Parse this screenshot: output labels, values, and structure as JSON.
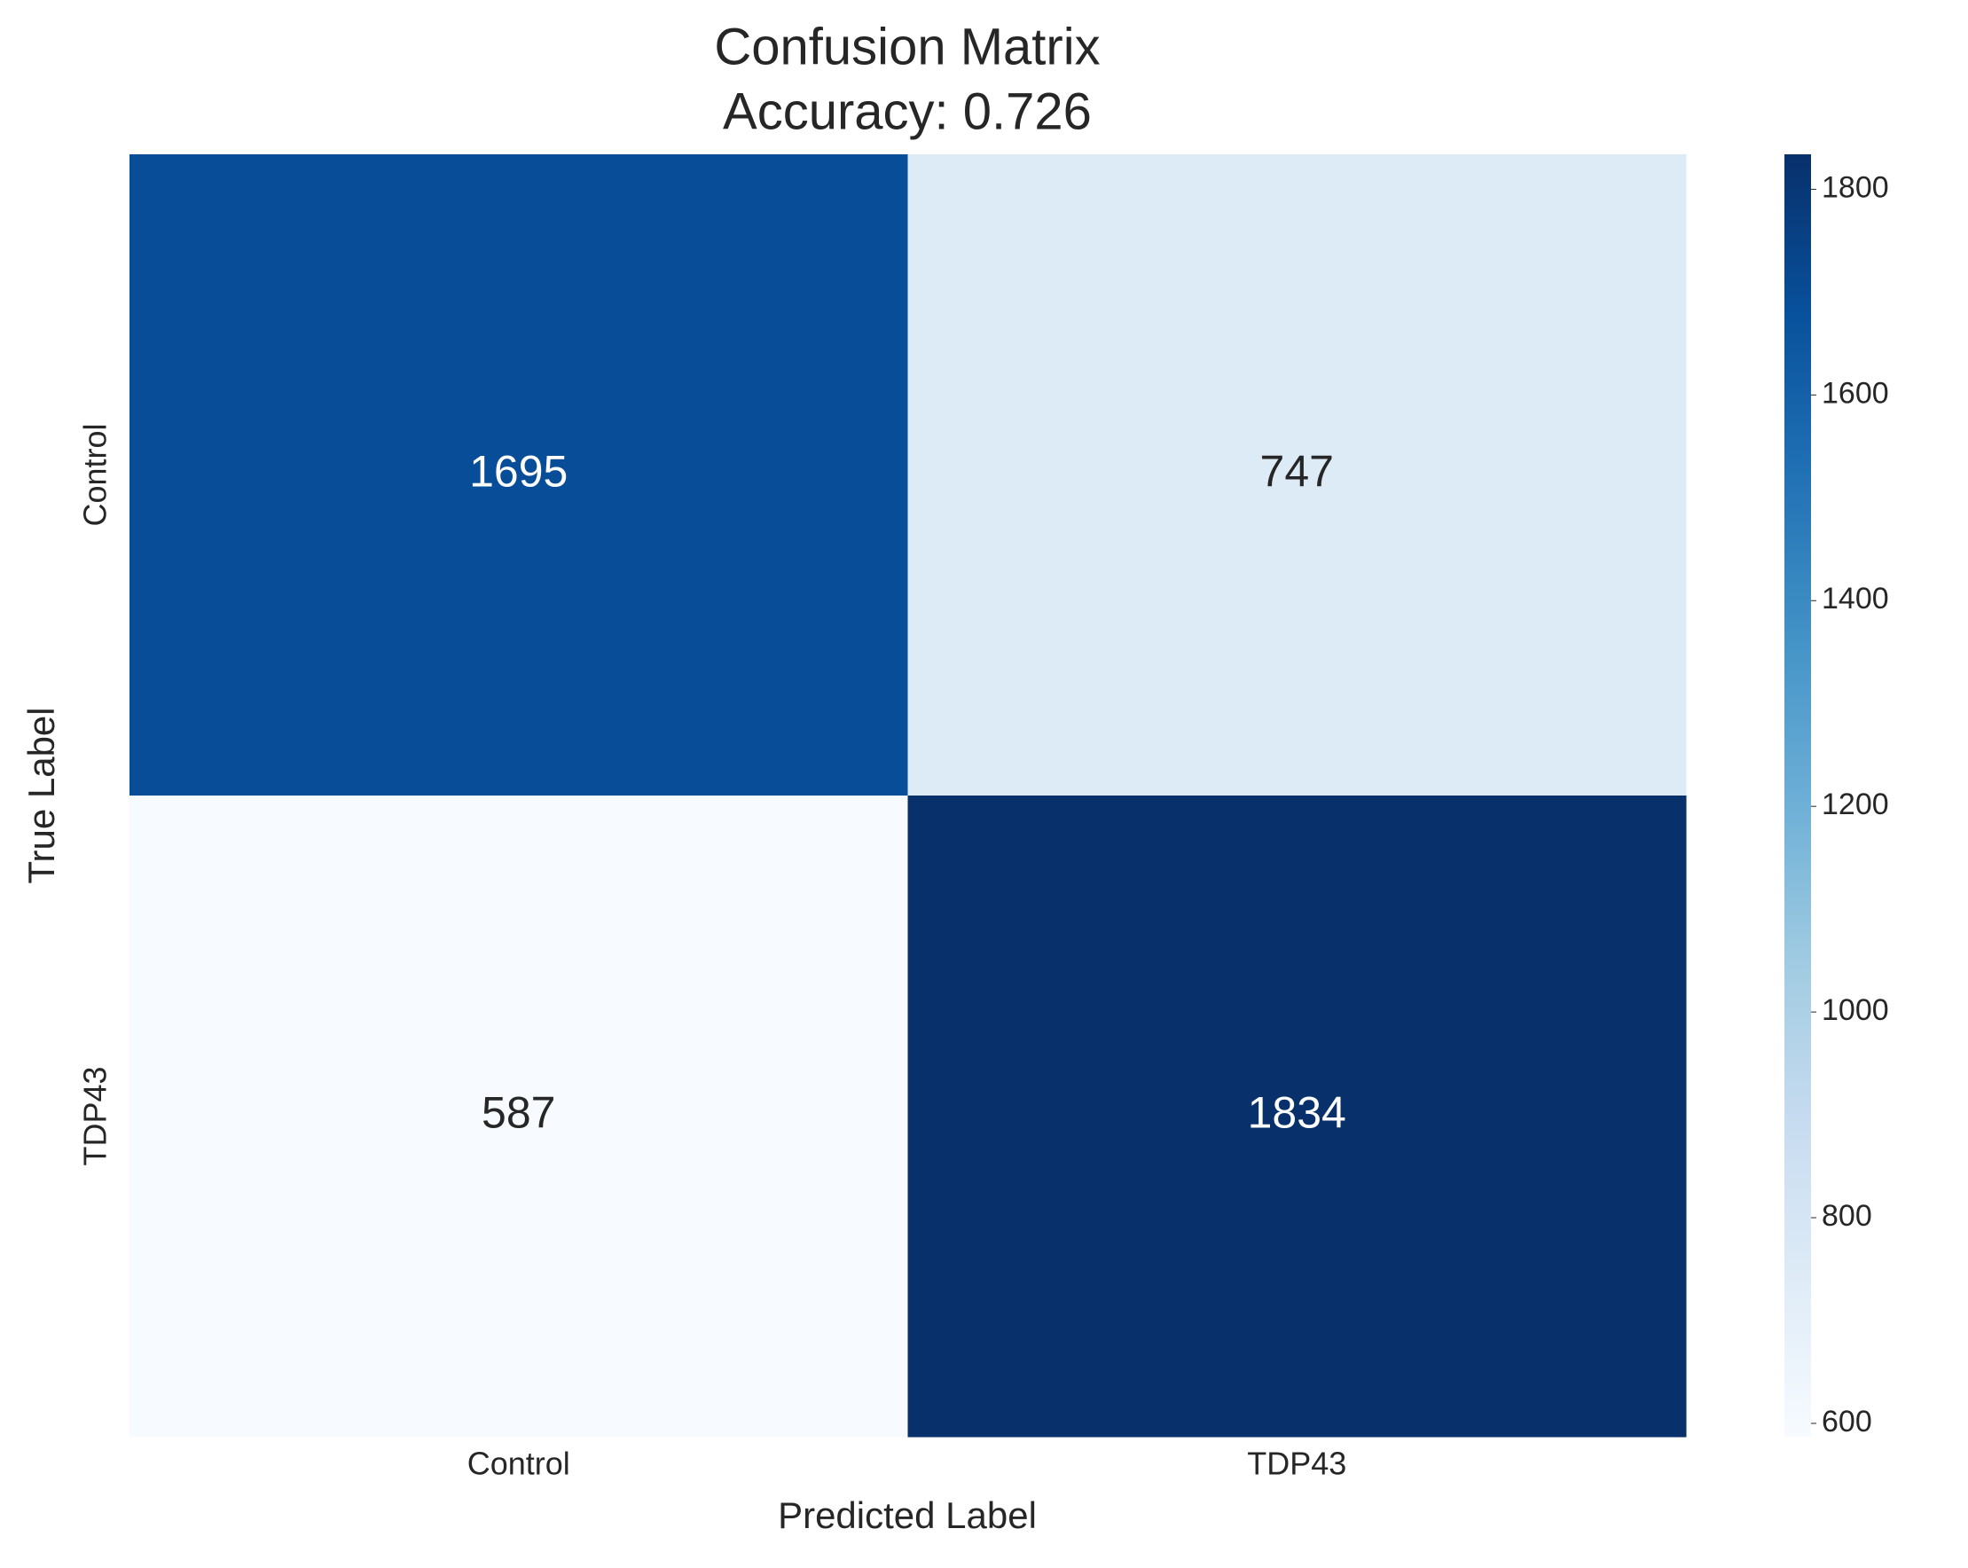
{
  "chart_data": {
    "type": "heatmap",
    "title": "Confusion Matrix",
    "subtitle": "Accuracy: 0.726",
    "x_label": "Predicted Label",
    "y_label": "True Label",
    "x_categories": [
      "Control",
      "TDP43"
    ],
    "y_categories": [
      "Control",
      "TDP43"
    ],
    "values": [
      [
        1695,
        747
      ],
      [
        587,
        1834
      ]
    ],
    "colormap": "Blues",
    "clim": [
      587,
      1834
    ],
    "cticks": [
      600,
      800,
      1000,
      1200,
      1400,
      1600,
      1800
    ]
  }
}
